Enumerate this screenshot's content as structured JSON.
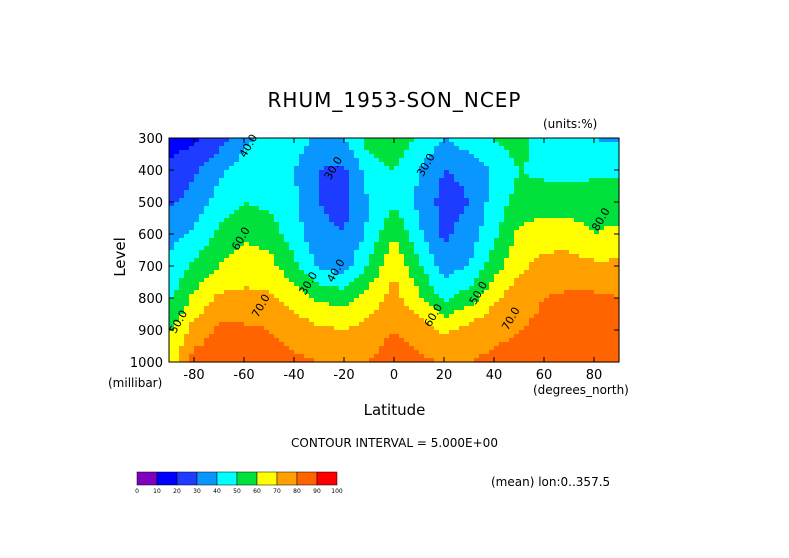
{
  "title": "RHUM_1953-SON_NCEP",
  "units_label": "(units:%)",
  "y_axis_label": "Level",
  "y_unit_label": "(millibar)",
  "x_axis_label": "Latitude",
  "x_unit_label": "(degrees_north)",
  "contour_interval_label": "CONTOUR INTERVAL = 5.000E+00",
  "mean_label": "(mean) lon:0..357.5",
  "chart_data": {
    "type": "heatmap",
    "title": "RHUM_1953-SON_NCEP",
    "xlabel": "Latitude",
    "ylabel": "Level",
    "x_unit": "degrees_north",
    "y_unit": "millibar",
    "xlim": [
      -90,
      90
    ],
    "ylim": [
      1000,
      300
    ],
    "x_ticks": [
      -80,
      -60,
      -40,
      -20,
      0,
      20,
      40,
      60,
      80
    ],
    "x_tick_labels": [
      "-80",
      "-60",
      "-40",
      "-20",
      "0",
      "20",
      "40",
      "60",
      "80"
    ],
    "y_ticks": [
      300,
      400,
      500,
      600,
      700,
      800,
      900,
      1000
    ],
    "y_tick_labels": [
      "300",
      "400",
      "500",
      "600",
      "700",
      "800",
      "900",
      "1000"
    ],
    "x": [
      -90,
      -80,
      -70,
      -60,
      -50,
      -40,
      -30,
      -20,
      -10,
      0,
      10,
      20,
      30,
      40,
      50,
      60,
      70,
      80,
      90
    ],
    "levels": [
      300,
      400,
      500,
      600,
      700,
      800,
      900,
      1000
    ],
    "values": [
      [
        15,
        18,
        25,
        38,
        42,
        46,
        38,
        40,
        55,
        58,
        48,
        40,
        46,
        50,
        55,
        45,
        40,
        40,
        38
      ],
      [
        22,
        28,
        38,
        44,
        45,
        40,
        30,
        28,
        45,
        50,
        40,
        30,
        32,
        42,
        50,
        48,
        46,
        48,
        48
      ],
      [
        28,
        34,
        44,
        50,
        48,
        42,
        30,
        27,
        40,
        48,
        38,
        26,
        30,
        44,
        54,
        54,
        55,
        56,
        56
      ],
      [
        36,
        42,
        52,
        58,
        55,
        45,
        32,
        30,
        42,
        60,
        42,
        28,
        34,
        48,
        62,
        66,
        65,
        60,
        62
      ],
      [
        42,
        52,
        60,
        66,
        64,
        52,
        38,
        35,
        52,
        68,
        52,
        35,
        40,
        55,
        68,
        73,
        74,
        72,
        72
      ],
      [
        48,
        62,
        72,
        72,
        72,
        66,
        58,
        56,
        64,
        74,
        62,
        48,
        55,
        68,
        76,
        80,
        82,
        82,
        80
      ],
      [
        58,
        74,
        82,
        82,
        80,
        76,
        72,
        70,
        74,
        80,
        75,
        68,
        74,
        78,
        80,
        82,
        84,
        84,
        84
      ],
      [
        64,
        84,
        86,
        86,
        84,
        82,
        80,
        78,
        80,
        86,
        82,
        80,
        80,
        82,
        82,
        84,
        86,
        86,
        86
      ]
    ],
    "contour_interval": 5.0,
    "contour_labels": [
      {
        "text": "40.0",
        "x": -57,
        "y": 330
      },
      {
        "text": "30.0",
        "x": -23,
        "y": 400
      },
      {
        "text": "30.0",
        "x": 14,
        "y": 390
      },
      {
        "text": "60.0",
        "x": -60,
        "y": 620
      },
      {
        "text": "40.0",
        "x": -22,
        "y": 720
      },
      {
        "text": "30.0",
        "x": -33,
        "y": 760
      },
      {
        "text": "70.0",
        "x": -52,
        "y": 830
      },
      {
        "text": "60.0",
        "x": 17,
        "y": 860
      },
      {
        "text": "50.0",
        "x": 35,
        "y": 790
      },
      {
        "text": "70.0",
        "x": 48,
        "y": 870
      },
      {
        "text": "50.0",
        "x": -85,
        "y": 880
      },
      {
        "text": "80.0",
        "x": 84,
        "y": 560
      }
    ],
    "colorbar": {
      "ticks": [
        "0",
        "10",
        "20",
        "30",
        "40",
        "50",
        "60",
        "70",
        "80",
        "90",
        "100"
      ],
      "colors": [
        "#7f00bf",
        "#0000ff",
        "#1e3cff",
        "#0a96ff",
        "#00ffff",
        "#00e13c",
        "#a0e632",
        "#ffff00",
        "#ffa000",
        "#ff6400",
        "#ff0000"
      ]
    },
    "band_colors": [
      {
        "from": 0,
        "to": 10,
        "color": "#7f00bf"
      },
      {
        "from": 10,
        "to": 20,
        "color": "#0000ff"
      },
      {
        "from": 20,
        "to": 30,
        "color": "#1e3cff"
      },
      {
        "from": 30,
        "to": 40,
        "color": "#0a96ff"
      },
      {
        "from": 40,
        "to": 50,
        "color": "#00ffff"
      },
      {
        "from": 50,
        "to": 60,
        "color": "#00e13c"
      },
      {
        "from": 60,
        "to": 70,
        "color": "#ffff00"
      },
      {
        "from": 70,
        "to": 80,
        "color": "#ffa000"
      },
      {
        "from": 80,
        "to": 90,
        "color": "#ff6400"
      },
      {
        "from": 90,
        "to": 100,
        "color": "#ff0000"
      }
    ]
  }
}
